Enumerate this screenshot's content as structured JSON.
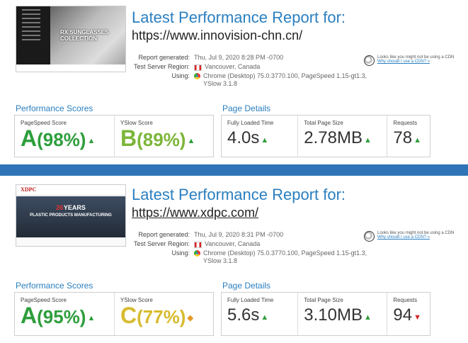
{
  "reports": [
    {
      "title": "Latest Performance Report for:",
      "url": "https://www.innovision-chn.cn/",
      "thumbnail": {
        "tag": "RX SUNGLASSES COLLECTION"
      },
      "meta": {
        "generated_label": "Report generated:",
        "generated_value": "Thu, Jul 9, 2020 8:28 PM -0700",
        "region_label": "Test Server Region:",
        "region_value": "Vancouver, Canada",
        "using_label": "Using:",
        "using_value": "Chrome (Desktop) 75.0.3770.100, PageSpeed 1.15-gt1.3, YSlow 3.1.8"
      },
      "cdn": {
        "text": "Looks like you might not be using a CDN",
        "link": "Why should I use a CDN? »"
      },
      "perf_title": "Performance Scores",
      "pagespeed": {
        "label": "PageSpeed Score",
        "letter": "A",
        "score": "(98%)",
        "arrow": "up"
      },
      "yslow": {
        "label": "YSlow Score",
        "letter": "B",
        "score": "(89%)",
        "arrow": "up"
      },
      "details_title": "Page Details",
      "fully_loaded": {
        "label": "Fully Loaded Time",
        "value": "4.0s",
        "arrow": "up"
      },
      "page_size": {
        "label": "Total Page Size",
        "value": "2.78MB",
        "arrow": "up"
      },
      "requests": {
        "label": "Requests",
        "value": "78",
        "arrow": "up"
      }
    },
    {
      "title": "Latest Performance Report for:",
      "url": "https://www.xdpc.com/",
      "thumbnail": {
        "logo": "XDPC",
        "years": "26",
        "years_suffix": "YEARS",
        "headline": "PLASTIC PRODUCTS MANUFACTURING"
      },
      "meta": {
        "generated_label": "Report generated:",
        "generated_value": "Thu, Jul 9, 2020 8:31 PM -0700",
        "region_label": "Test Server Region:",
        "region_value": "Vancouver, Canada",
        "using_label": "Using:",
        "using_value": "Chrome (Desktop) 75.0.3770.100, PageSpeed 1.15-gt1.3, YSlow 3.1.8"
      },
      "cdn": {
        "text": "Looks like you might not be using a CDN",
        "link": "Why should I use a CDN? »"
      },
      "perf_title": "Performance Scores",
      "pagespeed": {
        "label": "PageSpeed Score",
        "letter": "A",
        "score": "(95%)",
        "arrow": "up"
      },
      "yslow": {
        "label": "YSlow Score",
        "letter": "C",
        "score": "(77%)",
        "arrow": "diamond"
      },
      "details_title": "Page Details",
      "fully_loaded": {
        "label": "Fully Loaded Time",
        "value": "5.6s",
        "arrow": "up"
      },
      "page_size": {
        "label": "Total Page Size",
        "value": "3.10MB",
        "arrow": "up"
      },
      "requests": {
        "label": "Requests",
        "value": "94",
        "arrow": "down"
      }
    }
  ],
  "colors": {
    "accent": "#2a7fc0",
    "divider": "#2f74b7",
    "grade_a": "#2e9e3c",
    "grade_b": "#7cb63a",
    "grade_c": "#d7bb2f"
  },
  "icons": {
    "up": "▲",
    "diamond": "◆",
    "down": "▼"
  }
}
